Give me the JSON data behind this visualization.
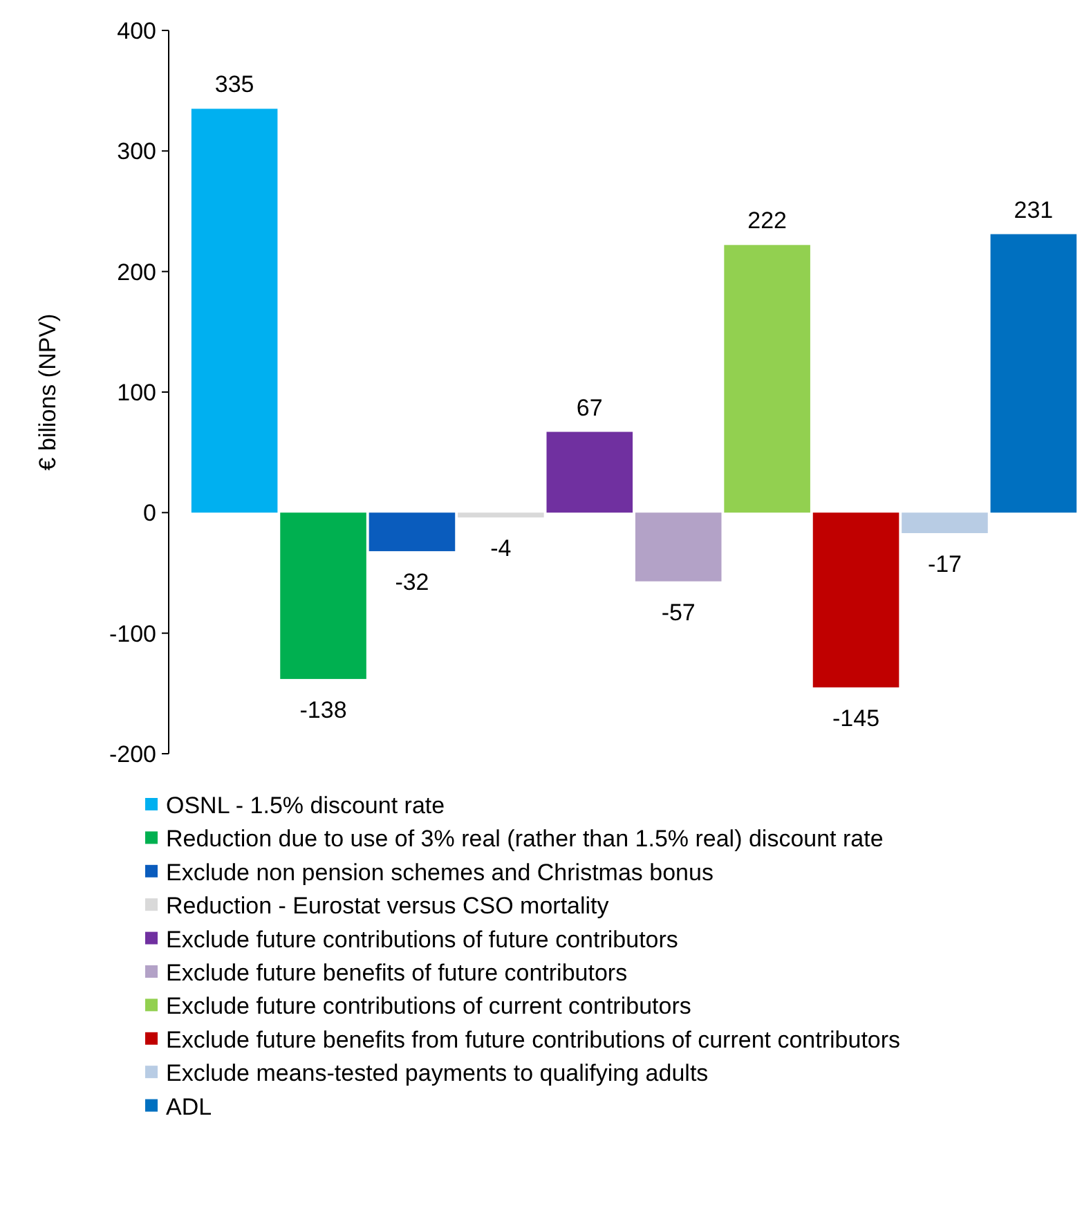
{
  "chart_data": {
    "type": "bar",
    "ylabel": "€ bilions (NPV)",
    "categories": [
      null
    ],
    "ylim": [
      -200,
      400
    ],
    "yticks": [
      -200,
      -100,
      0,
      100,
      200,
      300,
      400
    ],
    "data_labels": true,
    "legend": "bottom",
    "series": [
      {
        "name": "OSNL - 1.5% discount rate",
        "color": "#00b0f0",
        "values": [
          335
        ]
      },
      {
        "name": "Reduction due to use of 3% real (rather than 1.5% real) discount rate",
        "color": "#00b050",
        "values": [
          -138
        ]
      },
      {
        "name": "Exclude non pension schemes and Christmas bonus",
        "color": "#0a5cbd",
        "values": [
          -32
        ]
      },
      {
        "name": "Reduction - Eurostat versus CSO mortality",
        "color": "#d9d9d9",
        "values": [
          -4
        ]
      },
      {
        "name": "Exclude future contributions of future contributors",
        "color": "#7030a0",
        "values": [
          67
        ]
      },
      {
        "name": "Exclude future benefits of future contributors",
        "color": "#b3a2c7",
        "values": [
          -57
        ]
      },
      {
        "name": "Exclude future contributions of current contributors",
        "color": "#92d050",
        "values": [
          222
        ]
      },
      {
        "name": "Exclude future benefits from future contributions of current contributors",
        "color": "#c00000",
        "values": [
          -145
        ]
      },
      {
        "name": "Exclude means-tested payments to qualifying adults",
        "color": "#b8cce4",
        "values": [
          -17
        ]
      },
      {
        "name": "ADL",
        "color": "#0070c0",
        "values": [
          231
        ]
      }
    ]
  }
}
